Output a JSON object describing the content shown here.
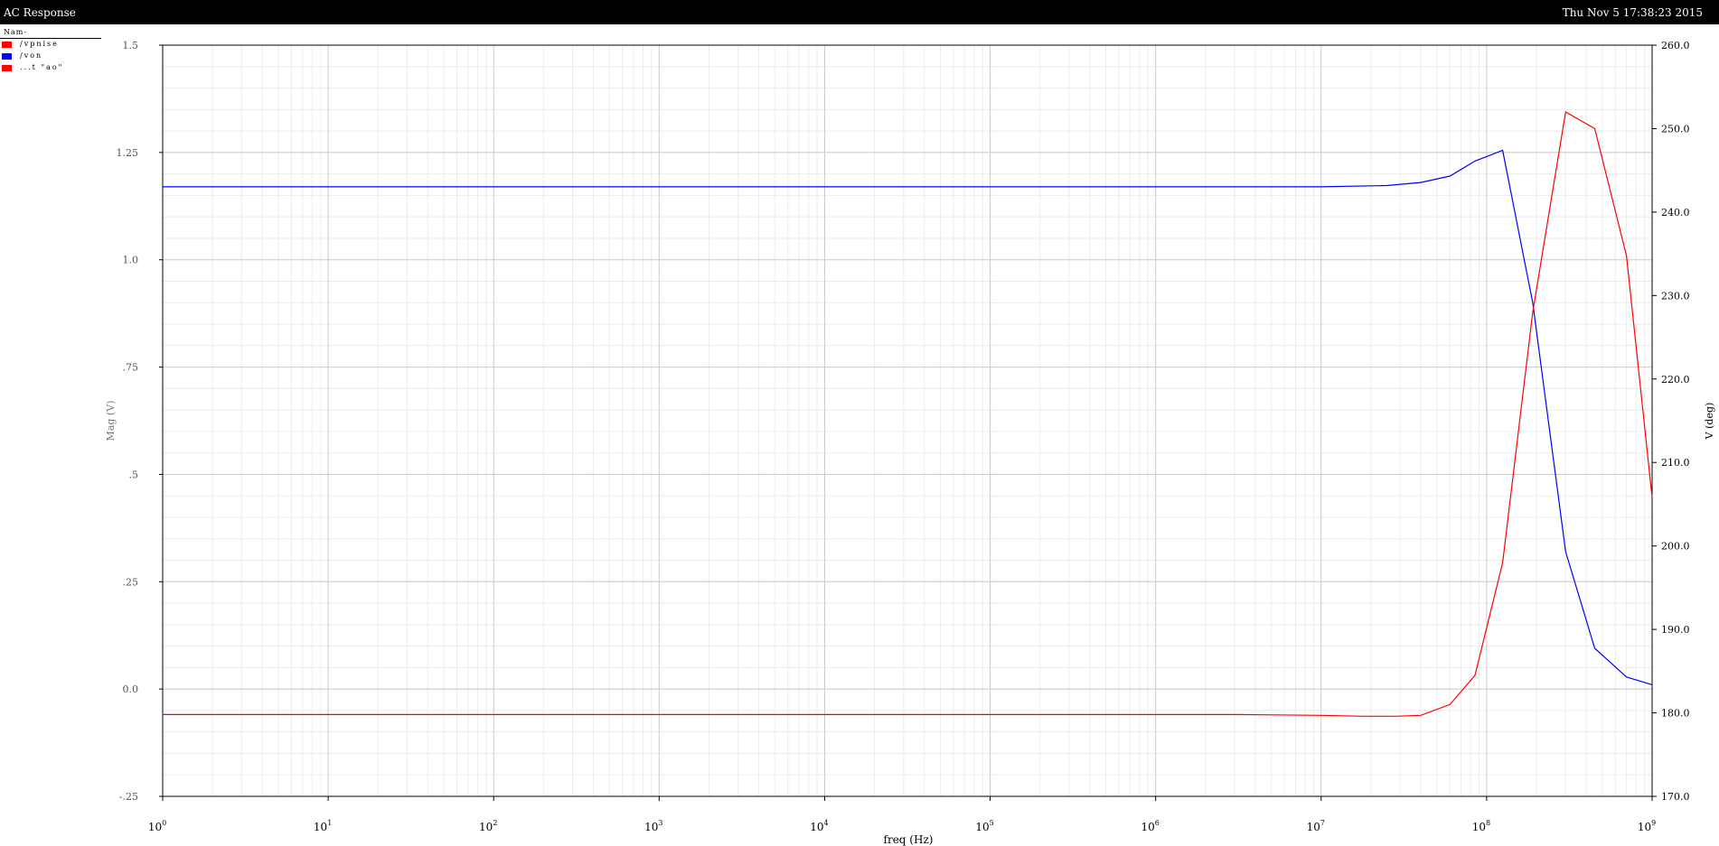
{
  "window": {
    "title": "AC Response",
    "timestamp": "Thu Nov 5 17:38:23 2015"
  },
  "legend": {
    "header": "Nam-",
    "items": [
      {
        "label": "/vpnise",
        "color": "#ff0000"
      },
      {
        "label": "/von",
        "color": "#0000ff"
      },
      {
        "label": "...t \"ao\"",
        "color": "#ff0000"
      }
    ]
  },
  "chart_data": {
    "type": "line",
    "xlabel": "freq (Hz)",
    "ylabel_left": "Mag (V)",
    "ylabel_right": "V (deg)",
    "x_scale": "log",
    "xlim": [
      1,
      1000000000
    ],
    "x_tick_base": "10",
    "x_tick_exponents": [
      "0",
      "1",
      "2",
      "3",
      "4",
      "5",
      "6",
      "7",
      "8",
      "9"
    ],
    "ylim_left": [
      -0.25,
      1.5
    ],
    "yticks_left": [
      "-.25",
      "0.0",
      ".25",
      ".5",
      ".75",
      "1.0",
      "1.25",
      "1.5"
    ],
    "ylim_right": [
      170,
      260
    ],
    "yticks_right": [
      "170.0",
      "180.0",
      "190.0",
      "200.0",
      "210.0",
      "220.0",
      "230.0",
      "240.0",
      "250.0",
      "260.0"
    ],
    "grid": true,
    "series": [
      {
        "name": "/von",
        "axis": "left",
        "color": "#0000ff",
        "x": [
          1,
          10000000,
          25000000,
          40000000,
          60000000,
          85000000,
          125000000,
          190000000,
          300000000,
          450000000,
          700000000,
          1000000000
        ],
        "y": [
          1.17,
          1.17,
          1.173,
          1.18,
          1.195,
          1.23,
          1.255,
          0.9,
          0.32,
          0.095,
          0.028,
          0.01
        ]
      },
      {
        "name": "...t \"ao\"",
        "axis": "right",
        "color": "#ff0000",
        "x": [
          1,
          3000000,
          10000000,
          18000000,
          28000000,
          40000000,
          60000000,
          85000000,
          125000000,
          190000000,
          300000000,
          450000000,
          700000000,
          1000000000
        ],
        "y": [
          179.8,
          179.8,
          179.7,
          179.6,
          179.6,
          179.7,
          181.0,
          184.5,
          198.0,
          228.0,
          252.0,
          250.0,
          234.8,
          205.8
        ]
      }
    ]
  }
}
